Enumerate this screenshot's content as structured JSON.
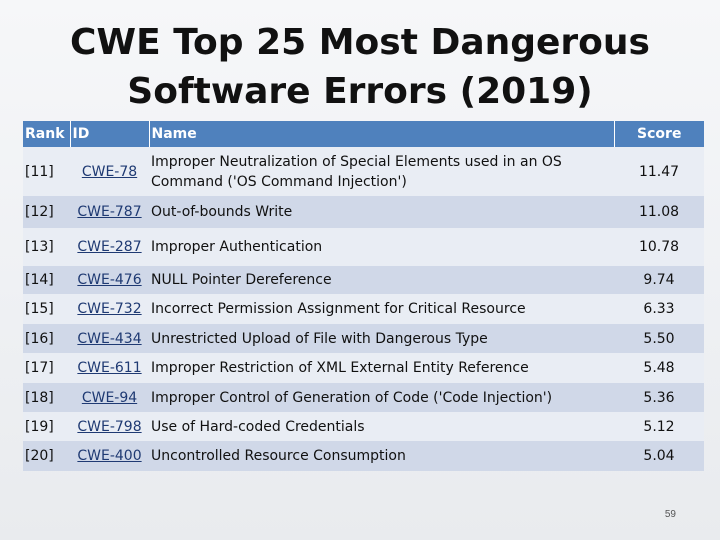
{
  "title": {
    "line1": "CWE Top 25 Most Dangerous",
    "line2": "Software Errors (2019)"
  },
  "table": {
    "headers": {
      "rank": "Rank",
      "id": "ID",
      "name": "Name",
      "score": "Score"
    },
    "rows": [
      {
        "rank": "[11]",
        "id": "CWE-78",
        "name": "Improper Neutralization of Special Elements used in an OS Command ('OS Command Injection')",
        "score": "11.47"
      },
      {
        "rank": "[12]",
        "id": "CWE-787",
        "name": "Out-of-bounds Write",
        "score": "11.08"
      },
      {
        "rank": "[13]",
        "id": "CWE-287",
        "name": "Improper Authentication",
        "score": "10.78"
      },
      {
        "rank": "[14]",
        "id": "CWE-476",
        "name": "NULL Pointer Dereference",
        "score": "9.74"
      },
      {
        "rank": "[15]",
        "id": "CWE-732",
        "name": "Incorrect Permission Assignment for Critical Resource",
        "score": "6.33"
      },
      {
        "rank": "[16]",
        "id": "CWE-434",
        "name": "Unrestricted Upload of File with Dangerous Type",
        "score": "5.50"
      },
      {
        "rank": "[17]",
        "id": "CWE-611",
        "name": "Improper Restriction of XML External Entity Reference",
        "score": "5.48"
      },
      {
        "rank": "[18]",
        "id": "CWE-94",
        "name": "Improper Control of Generation of Code ('Code Injection')",
        "score": "5.36"
      },
      {
        "rank": "[19]",
        "id": "CWE-798",
        "name": "Use of Hard-coded Credentials",
        "score": "5.12"
      },
      {
        "rank": "[20]",
        "id": "CWE-400",
        "name": "Uncontrolled Resource Consumption",
        "score": "5.04"
      }
    ]
  },
  "slide_number": "59",
  "colors": {
    "header_bg": "#4f81bd",
    "row_light": "#e9edf4",
    "row_dark": "#d0d8e8",
    "link": "#1f3a73"
  }
}
